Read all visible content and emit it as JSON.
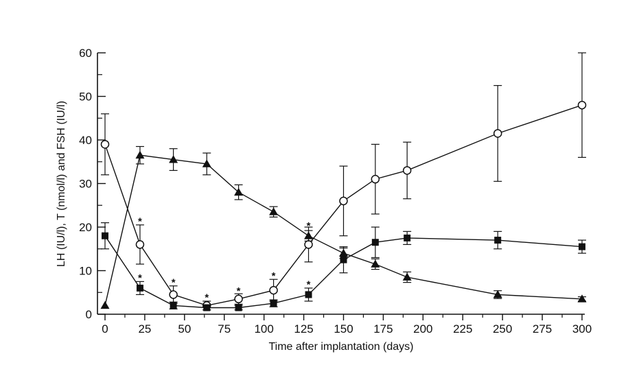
{
  "chart_data": {
    "type": "line",
    "title": "",
    "xlabel": "Time after implantation (days)",
    "ylabel": "LH (IU/l), T (nmol/l) and FSH (IU/l)",
    "xlim": [
      0,
      300
    ],
    "ylim": [
      0,
      60
    ],
    "x_ticks": [
      0,
      25,
      50,
      75,
      100,
      125,
      150,
      175,
      200,
      225,
      250,
      275,
      300
    ],
    "y_ticks": [
      0,
      10,
      20,
      30,
      40,
      50,
      60
    ],
    "grid": false,
    "series": [
      {
        "name": "open circles",
        "marker": "open-circle",
        "x": [
          0,
          22,
          43,
          64,
          84,
          106,
          128,
          150,
          170,
          190,
          247,
          300
        ],
        "y": [
          39,
          16,
          4.5,
          2,
          3.5,
          5.5,
          16,
          26,
          31,
          33,
          41.5,
          48
        ],
        "err": [
          7,
          4.5,
          2,
          1,
          1.2,
          2.5,
          4,
          8,
          8,
          6.5,
          11,
          12
        ]
      },
      {
        "name": "filled triangles",
        "marker": "filled-triangle",
        "x": [
          0,
          22,
          43,
          64,
          84,
          106,
          128,
          150,
          170,
          190,
          247,
          300
        ],
        "y": [
          2,
          36.5,
          35.5,
          34.5,
          28,
          23.5,
          18,
          14,
          11.5,
          8.5,
          4.5,
          3.5
        ],
        "err": [
          0,
          2,
          2.5,
          2.5,
          1.7,
          1.2,
          1.2,
          1.2,
          1.2,
          1.2,
          0.9,
          0.5
        ]
      },
      {
        "name": "filled squares",
        "marker": "filled-square",
        "x": [
          0,
          22,
          43,
          64,
          84,
          106,
          128,
          150,
          170,
          190,
          247,
          300
        ],
        "y": [
          18,
          6,
          2,
          1.5,
          1.5,
          2.5,
          4.5,
          12.5,
          16.5,
          17.5,
          17,
          15.5
        ],
        "err": [
          3,
          1.5,
          0.8,
          0.5,
          0.5,
          0.8,
          1.5,
          3,
          3.5,
          1.5,
          2,
          1.5
        ]
      }
    ],
    "annotations": [
      {
        "text": "*",
        "x": 22,
        "y": 21.5
      },
      {
        "text": "*",
        "x": 22,
        "y": 8.5
      },
      {
        "text": "*",
        "x": 43,
        "y": 7.5
      },
      {
        "text": "*",
        "x": 64,
        "y": 4
      },
      {
        "text": "*",
        "x": 84,
        "y": 5.5
      },
      {
        "text": "*",
        "x": 106,
        "y": 9
      },
      {
        "text": "*",
        "x": 128,
        "y": 20.5
      },
      {
        "text": "*",
        "x": 128,
        "y": 7
      }
    ]
  }
}
